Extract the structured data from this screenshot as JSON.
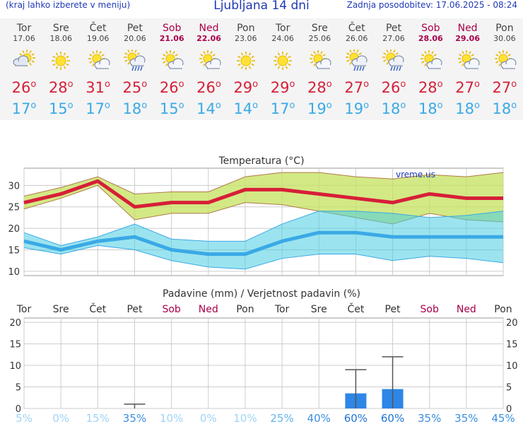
{
  "header": {
    "hint": "(kraj lahko izberete v meniju)",
    "title": "Ljubljana 14 dni",
    "updated": "Zadnja posodobitev: 17.06.2025 - 08:24"
  },
  "colors": {
    "max": "#d61f38",
    "min": "#3aa9e6",
    "weekend": "#a8004a",
    "rain": "#2e86e6"
  },
  "days": [
    {
      "name": "Tor",
      "date": "17.06",
      "icon": "partly-cloudy-icon",
      "max": "26",
      "min": "17",
      "weekend": false
    },
    {
      "name": "Sre",
      "date": "18.06",
      "icon": "sunny-icon",
      "max": "28",
      "min": "15",
      "weekend": false
    },
    {
      "name": "Čet",
      "date": "19.06",
      "icon": "sun-cloud-icon",
      "max": "31",
      "min": "17",
      "weekend": false
    },
    {
      "name": "Pet",
      "date": "20.06",
      "icon": "sun-cloud-rain-icon",
      "max": "25",
      "min": "18",
      "weekend": false
    },
    {
      "name": "Sob",
      "date": "21.06",
      "icon": "sun-cloud-icon",
      "max": "26",
      "min": "15",
      "weekend": true
    },
    {
      "name": "Ned",
      "date": "22.06",
      "icon": "sun-cloud-icon",
      "max": "26",
      "min": "14",
      "weekend": true
    },
    {
      "name": "Pon",
      "date": "23.06",
      "icon": "sunny-icon",
      "max": "29",
      "min": "14",
      "weekend": false
    },
    {
      "name": "Tor",
      "date": "24.06",
      "icon": "sunny-icon",
      "max": "29",
      "min": "17",
      "weekend": false
    },
    {
      "name": "Sre",
      "date": "25.06",
      "icon": "sun-cloud-icon",
      "max": "28",
      "min": "19",
      "weekend": false
    },
    {
      "name": "Čet",
      "date": "26.06",
      "icon": "sun-cloud-rain-icon",
      "max": "27",
      "min": "19",
      "weekend": false
    },
    {
      "name": "Pet",
      "date": "27.06",
      "icon": "sun-cloud-rain-icon",
      "max": "26",
      "min": "18",
      "weekend": false
    },
    {
      "name": "Sob",
      "date": "28.06",
      "icon": "sun-cloud-icon",
      "max": "28",
      "min": "18",
      "weekend": true
    },
    {
      "name": "Ned",
      "date": "29.06",
      "icon": "sun-cloud-icon",
      "max": "27",
      "min": "18",
      "weekend": true
    },
    {
      "name": "Pon",
      "date": "30.06",
      "icon": "sun-cloud-icon",
      "max": "27",
      "min": "18",
      "weekend": false
    }
  ],
  "chart_data": [
    {
      "type": "line",
      "title": "Temperatura (°C)",
      "watermark": "vreme.us",
      "categories": [
        "17.06",
        "18.06",
        "19.06",
        "20.06",
        "21.06",
        "22.06",
        "23.06",
        "24.06",
        "25.06",
        "26.06",
        "27.06",
        "28.06",
        "29.06",
        "30.06"
      ],
      "ylim": [
        9,
        34
      ],
      "yticks": [
        "10",
        "15",
        "20",
        "25",
        "30"
      ],
      "series": [
        {
          "role": "max",
          "values": [
            26,
            28,
            31,
            25,
            26,
            26,
            29,
            29,
            28,
            27,
            26,
            28,
            27,
            27
          ]
        },
        {
          "role": "max_range",
          "low": [
            24.5,
            27,
            30,
            22,
            23.5,
            23.5,
            26,
            25.5,
            24,
            22.5,
            21,
            23.5,
            22,
            21.5
          ],
          "high": [
            27.5,
            29.5,
            32,
            28,
            28.5,
            28.5,
            32,
            33,
            33,
            32,
            31.5,
            32.5,
            32,
            33
          ]
        },
        {
          "role": "min",
          "values": [
            17,
            15,
            17,
            18,
            15,
            14,
            14,
            17,
            19,
            19,
            18,
            18,
            18,
            18
          ]
        },
        {
          "role": "min_range",
          "low": [
            15.5,
            14,
            16,
            15,
            12.5,
            11,
            10.5,
            13,
            14,
            14,
            12.5,
            13.5,
            13,
            12
          ],
          "high": [
            19,
            16,
            18,
            21,
            17.5,
            17,
            17,
            21,
            24,
            24,
            23.5,
            22.5,
            23,
            24
          ]
        }
      ],
      "grid": true
    },
    {
      "type": "bar",
      "title": "Padavine (mm) / Verjetnost padavin (%)",
      "categories": [
        "Tor",
        "Sre",
        "Čet",
        "Pet",
        "Sob",
        "Ned",
        "Pon",
        "Tor",
        "Sre",
        "Čet",
        "Pet",
        "Sob",
        "Ned",
        "Pon"
      ],
      "ylim": [
        0,
        21
      ],
      "yticks": [
        "0",
        "5",
        "10",
        "15",
        "20"
      ],
      "values": [
        0,
        0,
        0,
        0,
        0,
        0,
        0,
        0,
        0,
        3.5,
        4.5,
        0,
        0,
        0
      ],
      "error_high": [
        null,
        null,
        null,
        1,
        null,
        null,
        null,
        null,
        null,
        9,
        12,
        null,
        null,
        null
      ],
      "probability": [
        "5%",
        "0%",
        "15%",
        "35%",
        "10%",
        "0%",
        "10%",
        "25%",
        "40%",
        "60%",
        "60%",
        "35%",
        "35%",
        "45%"
      ],
      "grid": true
    }
  ]
}
